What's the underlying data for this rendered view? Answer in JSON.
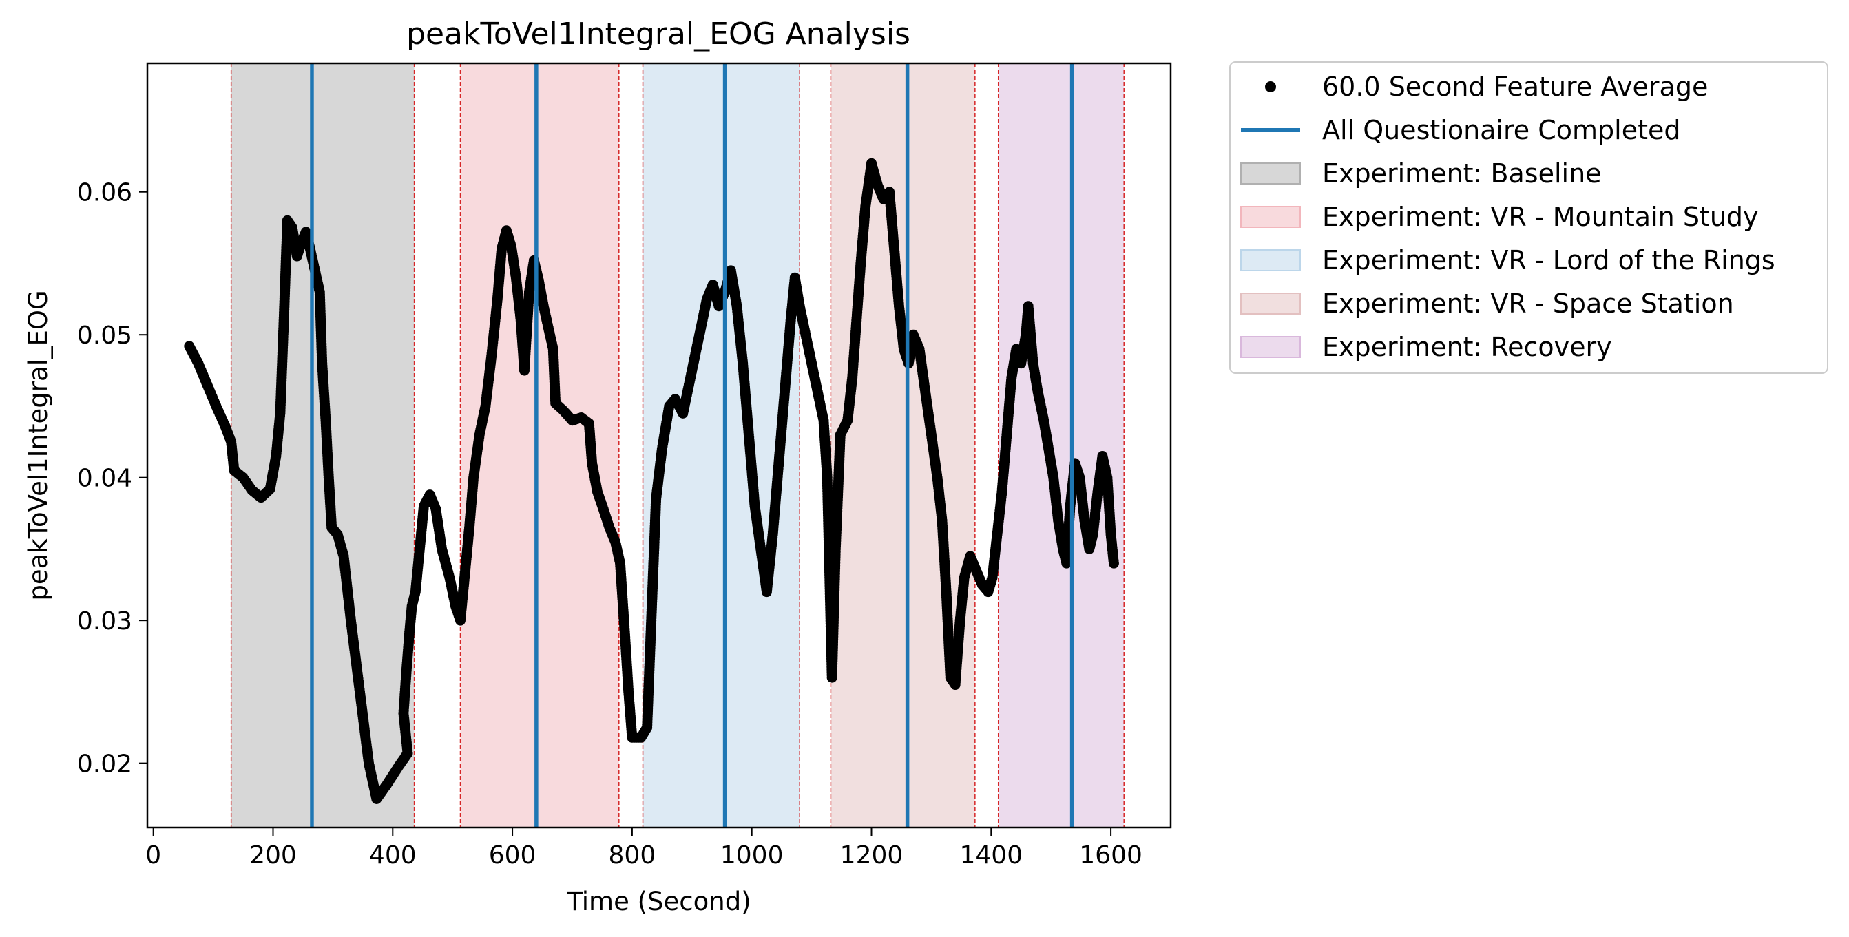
{
  "chart_data": {
    "type": "scatter",
    "title": "peakToVel1Integral_EOG Analysis",
    "xlabel": "Time (Second)",
    "ylabel": "peakToVel1Integral_EOG",
    "xlim": [
      -10,
      1700
    ],
    "ylim": [
      0.0155,
      0.069
    ],
    "xticks": [
      0,
      200,
      400,
      600,
      800,
      1000,
      1200,
      1400,
      1600
    ],
    "xtick_labels": [
      "0",
      "200",
      "400",
      "600",
      "800",
      "1000",
      "1200",
      "1400",
      "1600"
    ],
    "yticks": [
      0.02,
      0.03,
      0.04,
      0.05,
      0.06
    ],
    "ytick_labels": [
      "0.02",
      "0.03",
      "0.04",
      "0.05",
      "0.06"
    ],
    "grid": false,
    "legend_placement": "outside-right-top",
    "series": [
      {
        "name": "60.0 Second Feature Average",
        "color": "#000000",
        "marker": "circle",
        "points": [
          [
            60,
            0.0492
          ],
          [
            75,
            0.048
          ],
          [
            90,
            0.0465
          ],
          [
            105,
            0.045
          ],
          [
            120,
            0.0436
          ],
          [
            130,
            0.0425
          ],
          [
            135,
            0.0405
          ],
          [
            150,
            0.04
          ],
          [
            165,
            0.0391
          ],
          [
            180,
            0.0386
          ],
          [
            195,
            0.0392
          ],
          [
            205,
            0.0415
          ],
          [
            212,
            0.0445
          ],
          [
            218,
            0.051
          ],
          [
            224,
            0.058
          ],
          [
            232,
            0.0575
          ],
          [
            240,
            0.0555
          ],
          [
            248,
            0.0565
          ],
          [
            255,
            0.0572
          ],
          [
            262,
            0.056
          ],
          [
            270,
            0.0545
          ],
          [
            278,
            0.053
          ],
          [
            282,
            0.048
          ],
          [
            288,
            0.044
          ],
          [
            293,
            0.04
          ],
          [
            298,
            0.0365
          ],
          [
            308,
            0.036
          ],
          [
            318,
            0.0345
          ],
          [
            330,
            0.03
          ],
          [
            345,
            0.025
          ],
          [
            360,
            0.02
          ],
          [
            373,
            0.0175
          ],
          [
            390,
            0.0185
          ],
          [
            410,
            0.0198
          ],
          [
            425,
            0.0207
          ],
          [
            418,
            0.0235
          ],
          [
            423,
            0.0265
          ],
          [
            428,
            0.0292
          ],
          [
            432,
            0.031
          ],
          [
            438,
            0.032
          ],
          [
            445,
            0.035
          ],
          [
            452,
            0.038
          ],
          [
            462,
            0.0388
          ],
          [
            472,
            0.0378
          ],
          [
            482,
            0.035
          ],
          [
            495,
            0.033
          ],
          [
            505,
            0.031
          ],
          [
            513,
            0.03
          ],
          [
            520,
            0.033
          ],
          [
            528,
            0.0365
          ],
          [
            535,
            0.04
          ],
          [
            545,
            0.043
          ],
          [
            555,
            0.045
          ],
          [
            565,
            0.0485
          ],
          [
            575,
            0.0525
          ],
          [
            582,
            0.056
          ],
          [
            590,
            0.0573
          ],
          [
            598,
            0.0562
          ],
          [
            606,
            0.054
          ],
          [
            614,
            0.051
          ],
          [
            620,
            0.0475
          ],
          [
            628,
            0.053
          ],
          [
            636,
            0.0552
          ],
          [
            644,
            0.0538
          ],
          [
            652,
            0.052
          ],
          [
            660,
            0.0505
          ],
          [
            668,
            0.049
          ],
          [
            672,
            0.0452
          ],
          [
            685,
            0.0447
          ],
          [
            700,
            0.044
          ],
          [
            715,
            0.0442
          ],
          [
            728,
            0.0438
          ],
          [
            733,
            0.041
          ],
          [
            742,
            0.039
          ],
          [
            752,
            0.0378
          ],
          [
            762,
            0.0365
          ],
          [
            772,
            0.0355
          ],
          [
            780,
            0.034
          ],
          [
            788,
            0.029
          ],
          [
            794,
            0.025
          ],
          [
            800,
            0.0218
          ],
          [
            815,
            0.0218
          ],
          [
            825,
            0.0225
          ],
          [
            832,
            0.03
          ],
          [
            840,
            0.0385
          ],
          [
            850,
            0.042
          ],
          [
            862,
            0.045
          ],
          [
            872,
            0.0455
          ],
          [
            885,
            0.0445
          ],
          [
            895,
            0.0465
          ],
          [
            905,
            0.0485
          ],
          [
            915,
            0.0505
          ],
          [
            925,
            0.0525
          ],
          [
            935,
            0.0535
          ],
          [
            945,
            0.052
          ],
          [
            955,
            0.053
          ],
          [
            965,
            0.0545
          ],
          [
            975,
            0.052
          ],
          [
            985,
            0.048
          ],
          [
            995,
            0.043
          ],
          [
            1005,
            0.038
          ],
          [
            1015,
            0.035
          ],
          [
            1025,
            0.032
          ],
          [
            1035,
            0.036
          ],
          [
            1045,
            0.041
          ],
          [
            1055,
            0.046
          ],
          [
            1065,
            0.051
          ],
          [
            1072,
            0.054
          ],
          [
            1080,
            0.052
          ],
          [
            1090,
            0.05
          ],
          [
            1100,
            0.048
          ],
          [
            1110,
            0.046
          ],
          [
            1120,
            0.044
          ],
          [
            1126,
            0.04
          ],
          [
            1130,
            0.033
          ],
          [
            1134,
            0.026
          ],
          [
            1140,
            0.035
          ],
          [
            1148,
            0.043
          ],
          [
            1160,
            0.044
          ],
          [
            1168,
            0.047
          ],
          [
            1175,
            0.051
          ],
          [
            1182,
            0.055
          ],
          [
            1190,
            0.059
          ],
          [
            1200,
            0.062
          ],
          [
            1210,
            0.0605
          ],
          [
            1220,
            0.0595
          ],
          [
            1230,
            0.06
          ],
          [
            1238,
            0.056
          ],
          [
            1246,
            0.052
          ],
          [
            1254,
            0.049
          ],
          [
            1262,
            0.048
          ],
          [
            1270,
            0.05
          ],
          [
            1280,
            0.049
          ],
          [
            1290,
            0.046
          ],
          [
            1300,
            0.043
          ],
          [
            1310,
            0.04
          ],
          [
            1318,
            0.037
          ],
          [
            1325,
            0.032
          ],
          [
            1332,
            0.026
          ],
          [
            1340,
            0.0255
          ],
          [
            1348,
            0.03
          ],
          [
            1355,
            0.033
          ],
          [
            1365,
            0.0345
          ],
          [
            1375,
            0.0335
          ],
          [
            1385,
            0.0325
          ],
          [
            1395,
            0.032
          ],
          [
            1402,
            0.033
          ],
          [
            1410,
            0.036
          ],
          [
            1418,
            0.039
          ],
          [
            1426,
            0.043
          ],
          [
            1434,
            0.047
          ],
          [
            1442,
            0.049
          ],
          [
            1450,
            0.048
          ],
          [
            1458,
            0.05
          ],
          [
            1462,
            0.052
          ],
          [
            1470,
            0.048
          ],
          [
            1478,
            0.046
          ],
          [
            1488,
            0.044
          ],
          [
            1496,
            0.042
          ],
          [
            1504,
            0.04
          ],
          [
            1512,
            0.037
          ],
          [
            1520,
            0.035
          ],
          [
            1526,
            0.034
          ],
          [
            1532,
            0.038
          ],
          [
            1540,
            0.041
          ],
          [
            1548,
            0.04
          ],
          [
            1556,
            0.037
          ],
          [
            1564,
            0.035
          ],
          [
            1570,
            0.036
          ],
          [
            1578,
            0.039
          ],
          [
            1586,
            0.0415
          ],
          [
            1594,
            0.04
          ],
          [
            1600,
            0.036
          ],
          [
            1605,
            0.034
          ]
        ]
      },
      {
        "name": "All Questionaire Completed",
        "color": "#1f77b4",
        "type": "vline",
        "x": [
          265,
          640,
          955,
          1260,
          1535
        ]
      }
    ],
    "regions": [
      {
        "name": "Experiment: Baseline",
        "color": "#b0b0b0",
        "x0": 130,
        "x1": 436
      },
      {
        "name": "Experiment: VR - Mountain Study",
        "color": "#f2b6bc",
        "x0": 513,
        "x1": 778
      },
      {
        "name": "Experiment: VR - Lord of the Rings",
        "color": "#bcd6ea",
        "x0": 818,
        "x1": 1080
      },
      {
        "name": "Experiment: VR - Space Station",
        "color": "#e3c0c0",
        "x0": 1132,
        "x1": 1373
      },
      {
        "name": "Experiment: Recovery",
        "color": "#d9b8dc",
        "x0": 1412,
        "x1": 1622
      }
    ],
    "boundary_color": "#d62728"
  }
}
